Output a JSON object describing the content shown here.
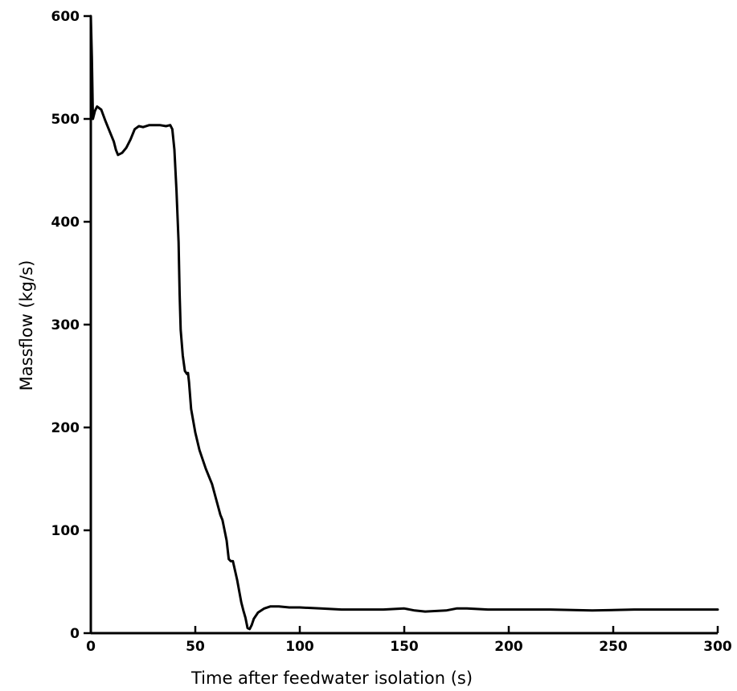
{
  "chart_data": {
    "type": "line",
    "title": "",
    "xlabel": "Time after feedwater isolation (s)",
    "ylabel": "Massflow (kg/s)",
    "xlim": [
      0,
      300
    ],
    "ylim": [
      0,
      600
    ],
    "xticks": [
      "0",
      "50",
      "100",
      "150",
      "200",
      "250",
      "300"
    ],
    "yticks": [
      "0",
      "100",
      "200",
      "300",
      "400",
      "500",
      "600"
    ],
    "grid": false,
    "series": [
      {
        "x": [
          0,
          0.5,
          1,
          2,
          3,
          5,
          7,
          9,
          11,
          12,
          13,
          15,
          17,
          19,
          21,
          23,
          25,
          28,
          30,
          33,
          36,
          38,
          39,
          40,
          41,
          42,
          42.5,
          43,
          44,
          45,
          46,
          46.5,
          47,
          48,
          50,
          52,
          55,
          58,
          60,
          62,
          63,
          64,
          65,
          66,
          67,
          68,
          70,
          72,
          73,
          74,
          75,
          76,
          77,
          78,
          80,
          83,
          86,
          90,
          95,
          100,
          110,
          120,
          130,
          140,
          150,
          155,
          160,
          170,
          175,
          180,
          190,
          200,
          220,
          240,
          260,
          280,
          300
        ],
        "y": [
          600,
          560,
          500,
          508,
          512,
          509,
          498,
          488,
          478,
          470,
          465,
          467,
          472,
          480,
          490,
          493,
          492,
          494,
          494,
          494,
          493,
          494,
          490,
          470,
          430,
          380,
          330,
          295,
          270,
          255,
          252,
          253,
          244,
          218,
          195,
          178,
          160,
          145,
          130,
          115,
          110,
          100,
          90,
          72,
          70,
          70,
          52,
          30,
          22,
          15,
          5,
          4,
          8,
          14,
          20,
          24,
          26,
          26,
          25,
          25,
          24,
          23,
          23,
          23,
          24,
          22,
          21,
          22,
          24,
          24,
          23,
          23,
          23,
          22,
          23,
          23,
          23
        ]
      }
    ]
  }
}
